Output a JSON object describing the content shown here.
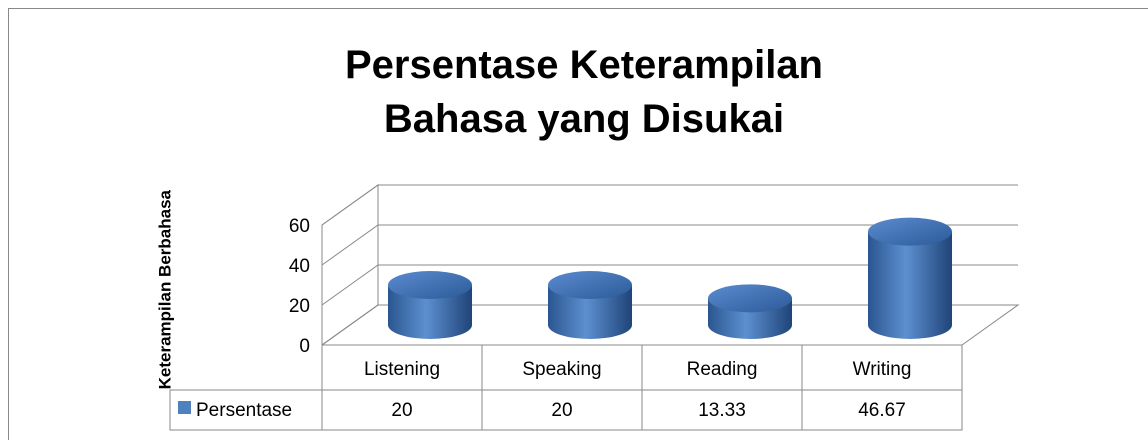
{
  "chart_data": {
    "type": "cylinder3d",
    "title": "Persentase Keterampilan Bahasa yang Disukai",
    "y_label": "Keterampilan Berbahasa",
    "categories": [
      "Listening",
      "Speaking",
      "Reading",
      "Writing"
    ],
    "series": [
      {
        "name": "Persentase",
        "color": "#4f81bd",
        "values": [
          20,
          20,
          13.33,
          46.67
        ]
      }
    ],
    "ylim": [
      0,
      60
    ],
    "yticks": [
      0,
      20,
      40,
      60
    ],
    "grid": true,
    "legend": "table"
  }
}
